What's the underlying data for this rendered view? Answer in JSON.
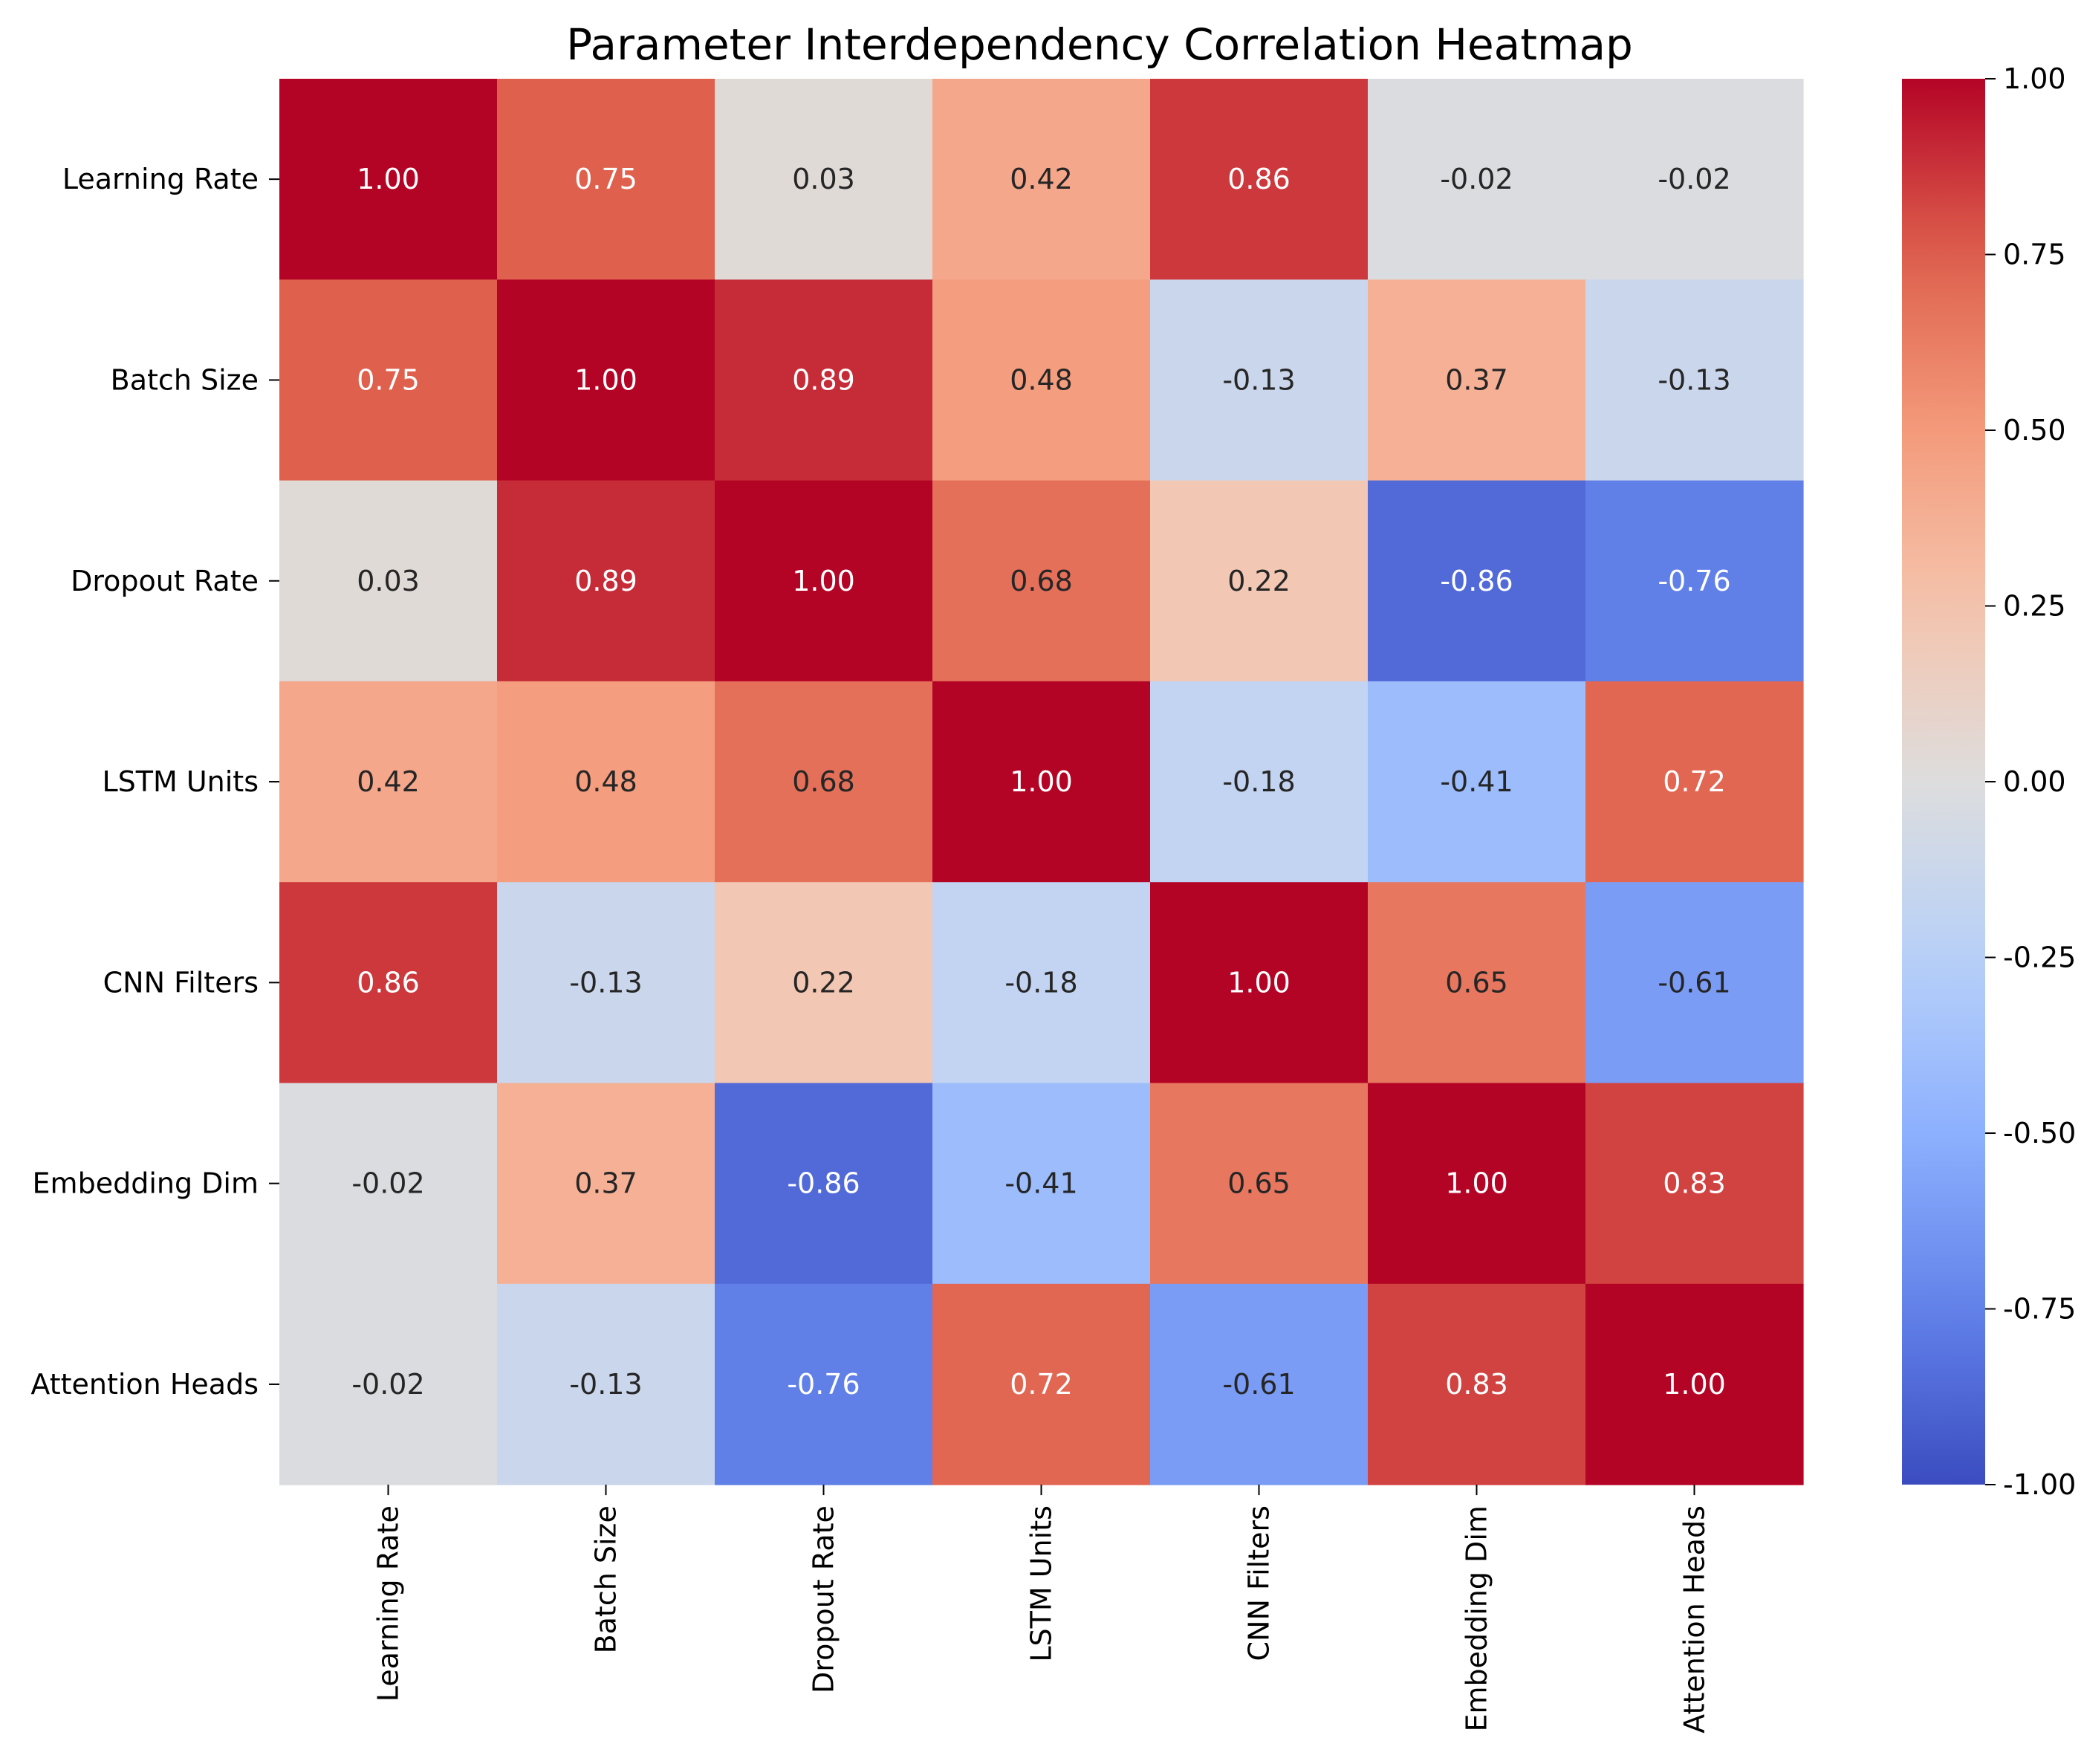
{
  "chart_data": {
    "type": "heatmap",
    "title": "Parameter Interdependency Correlation Heatmap",
    "rows": [
      "Learning Rate",
      "Batch Size",
      "Dropout Rate",
      "LSTM Units",
      "CNN Filters",
      "Embedding Dim",
      "Attention Heads"
    ],
    "columns": [
      "Learning Rate",
      "Batch Size",
      "Dropout Rate",
      "LSTM Units",
      "CNN Filters",
      "Embedding Dim",
      "Attention Heads"
    ],
    "values": [
      [
        1.0,
        0.75,
        0.03,
        0.42,
        0.86,
        -0.02,
        -0.02
      ],
      [
        0.75,
        1.0,
        0.89,
        0.48,
        -0.13,
        0.37,
        -0.13
      ],
      [
        0.03,
        0.89,
        1.0,
        0.68,
        0.22,
        -0.86,
        -0.76
      ],
      [
        0.42,
        0.48,
        0.68,
        1.0,
        -0.18,
        -0.41,
        0.72
      ],
      [
        0.86,
        -0.13,
        0.22,
        -0.18,
        1.0,
        0.65,
        -0.61
      ],
      [
        -0.02,
        0.37,
        -0.86,
        -0.41,
        0.65,
        1.0,
        0.83
      ],
      [
        -0.02,
        -0.13,
        -0.76,
        0.72,
        -0.61,
        0.83,
        1.0
      ]
    ],
    "cell_labels": [
      [
        "1.00",
        "0.75",
        "0.03",
        "0.42",
        "0.86",
        "-0.02",
        "-0.02"
      ],
      [
        "0.75",
        "1.00",
        "0.89",
        "0.48",
        "-0.13",
        "0.37",
        "-0.13"
      ],
      [
        "0.03",
        "0.89",
        "1.00",
        "0.68",
        "0.22",
        "-0.86",
        "-0.76"
      ],
      [
        "0.42",
        "0.48",
        "0.68",
        "1.00",
        "-0.18",
        "-0.41",
        "0.72"
      ],
      [
        "0.86",
        "-0.13",
        "0.22",
        "-0.18",
        "1.00",
        "0.65",
        "-0.61"
      ],
      [
        "-0.02",
        "0.37",
        "-0.86",
        "-0.41",
        "0.65",
        "1.00",
        "0.83"
      ],
      [
        "-0.02",
        "-0.13",
        "-0.76",
        "0.72",
        "-0.61",
        "0.83",
        "1.00"
      ]
    ],
    "colormap": "coolwarm",
    "vmin": -1.0,
    "vmax": 1.0,
    "colorbar_ticks": [
      1.0,
      0.75,
      0.5,
      0.25,
      0.0,
      -0.25,
      -0.5,
      -0.75,
      -1.0
    ],
    "colorbar_tick_labels": [
      "1.00",
      "0.75",
      "0.50",
      "0.25",
      "0.00",
      "-0.25",
      "-0.50",
      "-0.75",
      "-1.00"
    ],
    "colorbar_position": "right",
    "xtick_rotation": "vertical",
    "grid": false
  }
}
